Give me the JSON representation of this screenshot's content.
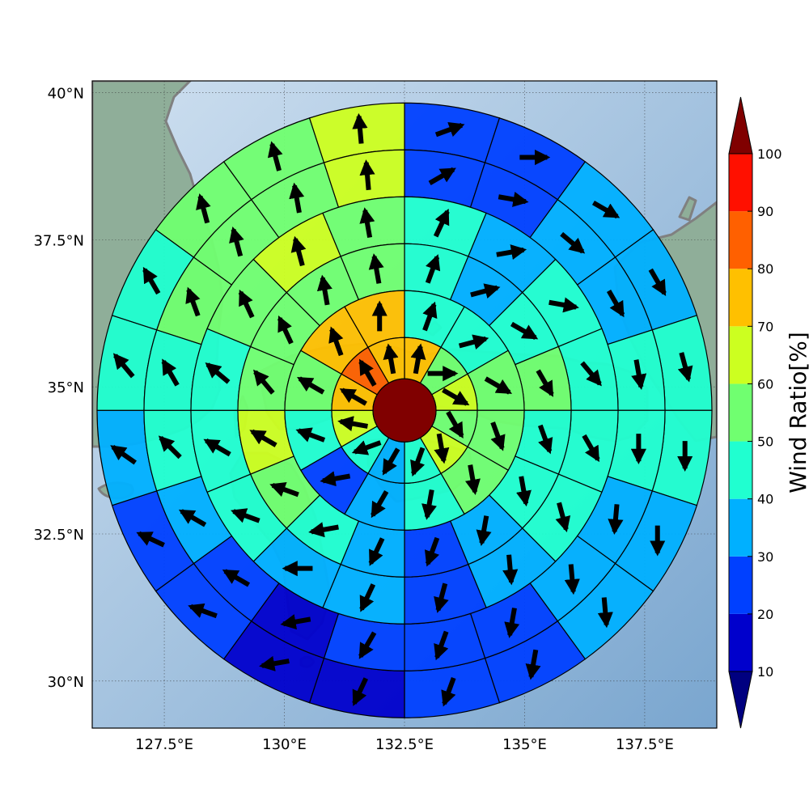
{
  "map": {
    "lon_range": [
      126.0,
      139.0
    ],
    "lat_range": [
      29.2,
      40.2
    ],
    "lon_ticks": [
      "127.5°E",
      "130°E",
      "132.5°E",
      "135°E",
      "137.5°E"
    ],
    "lon_tick_values": [
      127.5,
      130.0,
      132.5,
      135.0,
      137.5
    ],
    "lat_ticks": [
      "40°N",
      "37.5°N",
      "35°N",
      "32.5°N",
      "30°N"
    ],
    "lat_tick_values": [
      40.0,
      37.5,
      35.0,
      32.5,
      30.0
    ],
    "grid": true,
    "center": {
      "lon": 132.5,
      "lat": 34.6
    },
    "land_color": "#8fae99",
    "sea_color_light": "#cfe0f0",
    "sea_color_dark": "#7aa6cf",
    "coast_color": "#808080"
  },
  "colorbar": {
    "title": "Wind Ratio[%]",
    "levels": [
      "10",
      "20",
      "30",
      "40",
      "50",
      "60",
      "70",
      "80",
      "90",
      "100"
    ],
    "level_values": [
      10,
      20,
      30,
      40,
      50,
      60,
      70,
      80,
      90,
      100
    ],
    "colors": [
      "#0000cc",
      "#0040ff",
      "#00b0ff",
      "#20ffd0",
      "#70ff70",
      "#ccff20",
      "#ffc000",
      "#ff6000",
      "#ff1000"
    ],
    "under_color": "#000080",
    "over_color": "#800000",
    "extend": "both"
  },
  "chart_data": {
    "type": "polar-sector-map",
    "center_value": 100,
    "rings": [
      {
        "values": [
          75,
          55,
          65,
          55,
          65,
          40,
          30,
          45,
          60,
          70,
          85,
          75
        ],
        "dirs": [
          10,
          90,
          120,
          150,
          170,
          200,
          210,
          250,
          280,
          300,
          330,
          350
        ]
      },
      {
        "values": [
          40,
          45,
          55,
          50,
          50,
          45,
          30,
          20,
          40,
          50,
          70,
          70
        ],
        "dirs": [
          20,
          75,
          120,
          160,
          170,
          190,
          210,
          260,
          290,
          300,
          340,
          0
        ]
      },
      {
        "values": [
          40,
          35,
          45,
          55,
          45,
          40,
          30,
          20,
          30,
          45,
          50,
          60,
          50,
          50,
          55,
          50
        ],
        "dirs": [
          20,
          75,
          120,
          150,
          160,
          170,
          190,
          200,
          205,
          260,
          290,
          300,
          320,
          335,
          350,
          350
        ]
      },
      {
        "values": [
          40,
          35,
          40,
          40,
          40,
          45,
          35,
          20,
          30,
          35,
          40,
          45,
          45,
          55,
          60,
          55
        ],
        "dirs": [
          25,
          80,
          100,
          140,
          150,
          165,
          175,
          195,
          205,
          270,
          290,
          300,
          310,
          335,
          345,
          350
        ]
      },
      {
        "values": [
          20,
          20,
          30,
          30,
          40,
          40,
          30,
          30,
          20,
          20,
          20,
          10,
          20,
          30,
          40,
          45,
          50,
          50,
          55,
          60
        ],
        "dirs": [
          60,
          100,
          130,
          150,
          170,
          180,
          185,
          175,
          190,
          200,
          210,
          260,
          300,
          300,
          315,
          330,
          340,
          345,
          350,
          355
        ]
      },
      {
        "values": [
          20,
          20,
          30,
          30,
          40,
          40,
          30,
          30,
          20,
          20,
          10,
          10,
          20,
          20,
          30,
          40,
          45,
          50,
          55,
          60
        ],
        "dirs": [
          70,
          90,
          120,
          150,
          165,
          180,
          180,
          175,
          190,
          200,
          205,
          260,
          290,
          295,
          305,
          320,
          330,
          345,
          345,
          355
        ]
      }
    ]
  }
}
